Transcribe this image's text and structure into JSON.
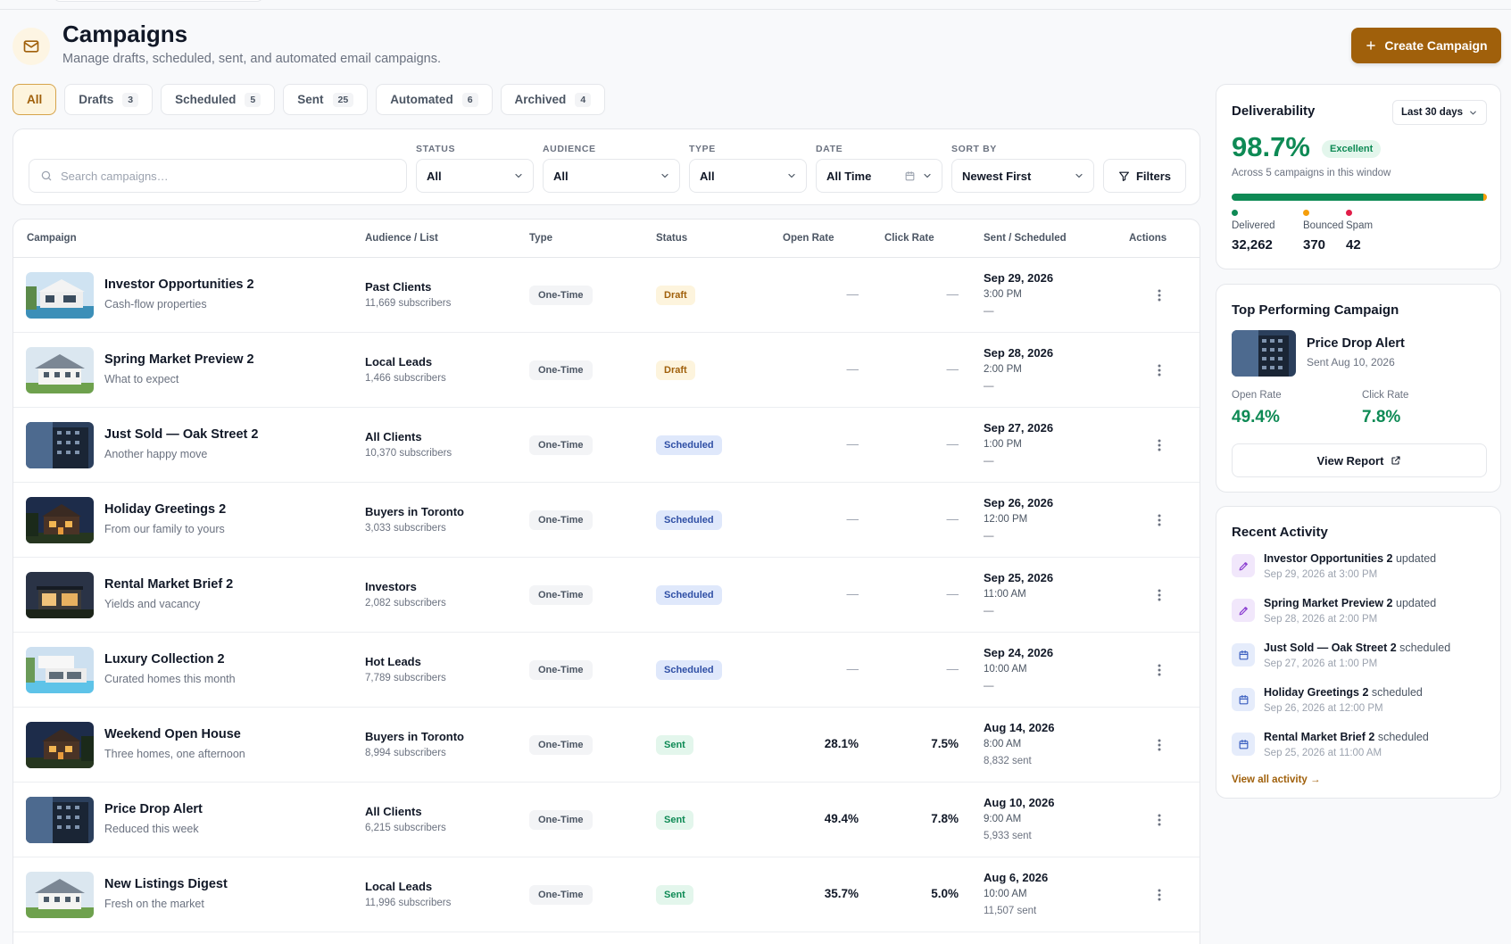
{
  "header": {
    "title": "Campaigns",
    "subtitle": "Manage drafts, scheduled, sent, and automated email campaigns.",
    "create_label": "Create Campaign"
  },
  "tabs": [
    {
      "label": "All",
      "count": ""
    },
    {
      "label": "Drafts",
      "count": "3"
    },
    {
      "label": "Scheduled",
      "count": "5"
    },
    {
      "label": "Sent",
      "count": "25"
    },
    {
      "label": "Automated",
      "count": "6"
    },
    {
      "label": "Archived",
      "count": "4"
    }
  ],
  "filters": {
    "search_placeholder": "Search campaigns…",
    "status_label": "STATUS",
    "status_value": "All",
    "audience_label": "AUDIENCE",
    "audience_value": "All",
    "type_label": "TYPE",
    "type_value": "All",
    "date_label": "DATE",
    "date_value": "All Time",
    "sort_label": "SORT BY",
    "sort_value": "Newest First",
    "filters_button": "Filters"
  },
  "table": {
    "columns": [
      "Campaign",
      "Audience / List",
      "Type",
      "Status",
      "Open Rate",
      "Click Rate",
      "Sent / Scheduled",
      "Actions"
    ],
    "rows": [
      {
        "name": "Investor Opportunities 2",
        "sub": "Cash-flow properties",
        "audience": "Past Clients",
        "subs": "11,669 subscribers",
        "type": "One-Time",
        "status": "Draft",
        "status_kind": "draft",
        "open": "—",
        "click": "—",
        "date": "Sep 29, 2026",
        "time": "3:00 PM",
        "sent": "—"
      },
      {
        "name": "Spring Market Preview 2",
        "sub": "What to expect",
        "audience": "Local Leads",
        "subs": "1,466 subscribers",
        "type": "One-Time",
        "status": "Draft",
        "status_kind": "draft",
        "open": "—",
        "click": "—",
        "date": "Sep 28, 2026",
        "time": "2:00 PM",
        "sent": "—"
      },
      {
        "name": "Just Sold — Oak Street 2",
        "sub": "Another happy move",
        "audience": "All Clients",
        "subs": "10,370 subscribers",
        "type": "One-Time",
        "status": "Scheduled",
        "status_kind": "scheduled",
        "open": "—",
        "click": "—",
        "date": "Sep 27, 2026",
        "time": "1:00 PM",
        "sent": "—"
      },
      {
        "name": "Holiday Greetings 2",
        "sub": "From our family to yours",
        "audience": "Buyers in Toronto",
        "subs": "3,033 subscribers",
        "type": "One-Time",
        "status": "Scheduled",
        "status_kind": "scheduled",
        "open": "—",
        "click": "—",
        "date": "Sep 26, 2026",
        "time": "12:00 PM",
        "sent": "—"
      },
      {
        "name": "Rental Market Brief 2",
        "sub": "Yields and vacancy",
        "audience": "Investors",
        "subs": "2,082 subscribers",
        "type": "One-Time",
        "status": "Scheduled",
        "status_kind": "scheduled",
        "open": "—",
        "click": "—",
        "date": "Sep 25, 2026",
        "time": "11:00 AM",
        "sent": "—"
      },
      {
        "name": "Luxury Collection 2",
        "sub": "Curated homes this month",
        "audience": "Hot Leads",
        "subs": "7,789 subscribers",
        "type": "One-Time",
        "status": "Scheduled",
        "status_kind": "scheduled",
        "open": "—",
        "click": "—",
        "date": "Sep 24, 2026",
        "time": "10:00 AM",
        "sent": "—"
      },
      {
        "name": "Weekend Open House",
        "sub": "Three homes, one afternoon",
        "audience": "Buyers in Toronto",
        "subs": "8,994 subscribers",
        "type": "One-Time",
        "status": "Sent",
        "status_kind": "sent",
        "open": "28.1%",
        "click": "7.5%",
        "date": "Aug 14, 2026",
        "time": "8:00 AM",
        "sent": "8,832 sent"
      },
      {
        "name": "Price Drop Alert",
        "sub": "Reduced this week",
        "audience": "All Clients",
        "subs": "6,215 subscribers",
        "type": "One-Time",
        "status": "Sent",
        "status_kind": "sent",
        "open": "49.4%",
        "click": "7.8%",
        "date": "Aug 10, 2026",
        "time": "9:00 AM",
        "sent": "5,933 sent"
      },
      {
        "name": "New Listings Digest",
        "sub": "Fresh on the market",
        "audience": "Local Leads",
        "subs": "11,996 subscribers",
        "type": "One-Time",
        "status": "Sent",
        "status_kind": "sent",
        "open": "35.7%",
        "click": "5.0%",
        "date": "Aug 6, 2026",
        "time": "10:00 AM",
        "sent": "11,507 sent"
      }
    ]
  },
  "deliverability": {
    "title": "Deliverability",
    "range": "Last 30 days",
    "rate": "98.7%",
    "badge": "Excellent",
    "note": "Across 5 campaigns in this window",
    "delivered_label": "Delivered",
    "delivered": "32,262",
    "bounced_label": "Bounced",
    "bounced": "370",
    "spam_label": "Spam",
    "spam": "42",
    "colors": {
      "delivered": "#0e8a55",
      "bounced": "#f59e0b",
      "spam": "#e11d48"
    }
  },
  "top_campaign": {
    "title": "Top Performing Campaign",
    "name": "Price Drop Alert",
    "sent": "Sent Aug 10, 2026",
    "open_label": "Open Rate",
    "open": "49.4%",
    "click_label": "Click Rate",
    "click": "7.8%",
    "button": "View Report"
  },
  "activity": {
    "title": "Recent Activity",
    "items": [
      {
        "name": "Investor Opportunities 2",
        "verb": "updated",
        "time": "Sep 29, 2026 at 3:00 PM",
        "icon": "pencil-icon"
      },
      {
        "name": "Spring Market Preview 2",
        "verb": "updated",
        "time": "Sep 28, 2026 at 2:00 PM",
        "icon": "pencil-icon"
      },
      {
        "name": "Just Sold — Oak Street 2",
        "verb": "scheduled",
        "time": "Sep 27, 2026 at 1:00 PM",
        "icon": "calendar-icon"
      },
      {
        "name": "Holiday Greetings 2",
        "verb": "scheduled",
        "time": "Sep 26, 2026 at 12:00 PM",
        "icon": "calendar-icon"
      },
      {
        "name": "Rental Market Brief 2",
        "verb": "scheduled",
        "time": "Sep 25, 2026 at 11:00 AM",
        "icon": "calendar-icon"
      }
    ],
    "view_all": "View all activity →"
  }
}
